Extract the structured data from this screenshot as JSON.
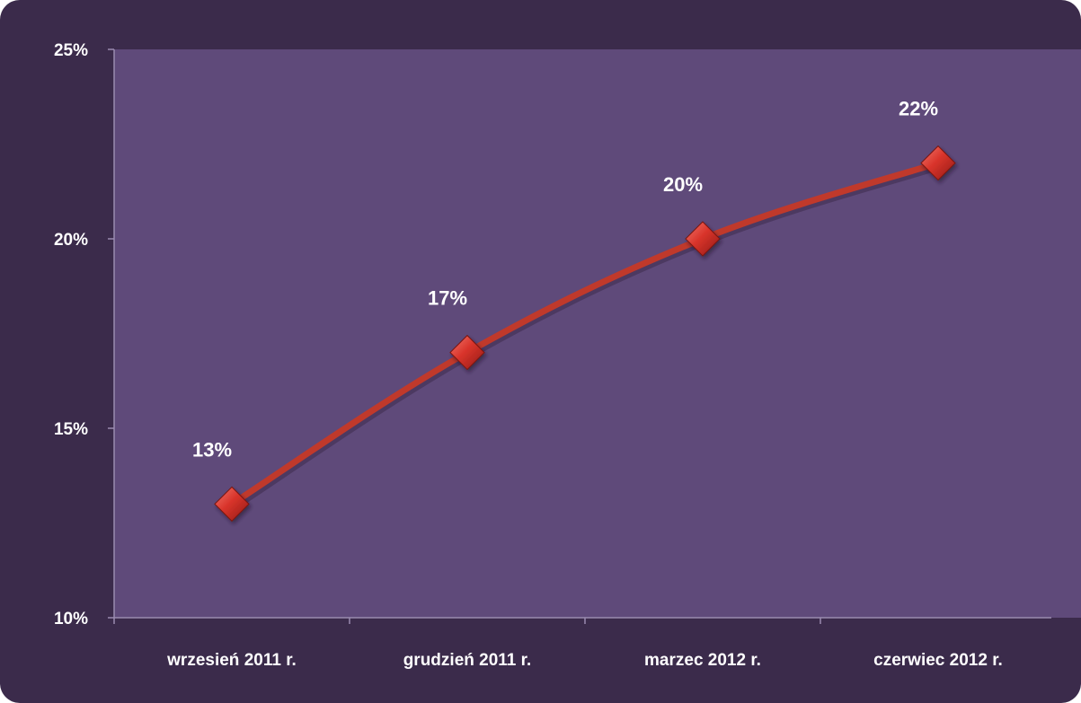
{
  "colors": {
    "outer_background": "#3b2b4b",
    "plot_background": "#5f4a7a",
    "axis_line": "#9a8bb0",
    "series_line": "#c0392b",
    "marker": "#d9342b",
    "text": "#ffffff"
  },
  "chart_data": {
    "type": "line",
    "title": "",
    "xlabel": "",
    "ylabel": "",
    "categories": [
      "wrzesień  2011 r.",
      "grudzień 2011 r.",
      "marzec 2012 r.",
      "czerwiec 2012 r."
    ],
    "series": [
      {
        "values": [
          13,
          17,
          20,
          22
        ],
        "data_labels": [
          "13%",
          "17%",
          "20%",
          "22%"
        ],
        "marker": "diamond"
      }
    ],
    "ylim": [
      10,
      25
    ],
    "yticks": [
      10,
      15,
      20,
      25
    ],
    "ytick_labels": [
      "10%",
      "15%",
      "20%",
      "25%"
    ],
    "grid": false,
    "legend": "none"
  }
}
